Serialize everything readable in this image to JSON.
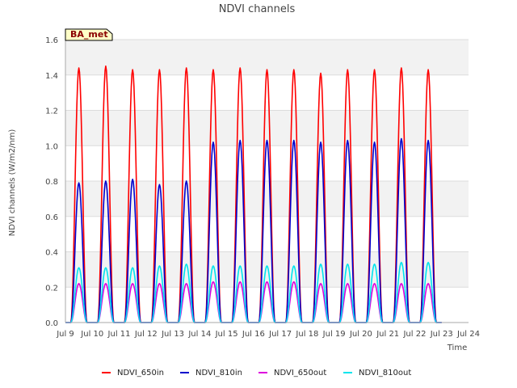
{
  "chart_data": {
    "type": "line",
    "title": "NDVI channels",
    "xlabel": "Time",
    "ylabel": "NDVI channels (W/m2/nm)",
    "ylim": [
      0.0,
      1.6
    ],
    "xlim": [
      9,
      24
    ],
    "x_ticks": [
      9,
      10,
      11,
      12,
      13,
      14,
      15,
      16,
      17,
      18,
      19,
      20,
      21,
      22,
      23,
      24
    ],
    "x_tick_labels": [
      "Jul 9",
      "Jul 10",
      "Jul 11",
      "Jul 12",
      "Jul 13",
      "Jul 14",
      "Jul 15",
      "Jul 16",
      "Jul 17",
      "Jul 18",
      "Jul 19",
      "Jul 20",
      "Jul 21",
      "Jul 22",
      "Jul 23",
      "Jul 24"
    ],
    "y_ticks": [
      0.0,
      0.2,
      0.4,
      0.6,
      0.8,
      1.0,
      1.2,
      1.4,
      1.6
    ],
    "y_tick_labels": [
      "0.0",
      "0.2",
      "0.4",
      "0.6",
      "0.8",
      "1.0",
      "1.2",
      "1.4",
      "1.6"
    ],
    "annotation": "BA_met",
    "day_starts": [
      9,
      10,
      11,
      12,
      13,
      14,
      15,
      16,
      17,
      18,
      19,
      20,
      21,
      22
    ],
    "daylight_start_offset": 0.2,
    "daylight_end_offset": 0.8,
    "series": [
      {
        "name": "NDVI_650in",
        "color": "#ff0000",
        "peaks": [
          1.44,
          1.45,
          1.43,
          1.43,
          1.44,
          1.43,
          1.44,
          1.43,
          1.43,
          1.41,
          1.43,
          1.43,
          1.44,
          1.43
        ]
      },
      {
        "name": "NDVI_810in",
        "color": "#0000cc",
        "peaks": [
          0.79,
          0.8,
          0.81,
          0.78,
          0.8,
          1.02,
          1.03,
          1.03,
          1.03,
          1.02,
          1.03,
          1.02,
          1.04,
          1.03
        ]
      },
      {
        "name": "NDVI_650out",
        "color": "#dd00dd",
        "peaks": [
          0.22,
          0.22,
          0.22,
          0.22,
          0.22,
          0.23,
          0.23,
          0.23,
          0.23,
          0.22,
          0.22,
          0.22,
          0.22,
          0.22
        ]
      },
      {
        "name": "NDVI_810out",
        "color": "#00e5ee",
        "peaks": [
          0.31,
          0.31,
          0.31,
          0.32,
          0.33,
          0.32,
          0.32,
          0.32,
          0.32,
          0.33,
          0.33,
          0.33,
          0.34,
          0.34
        ]
      }
    ]
  }
}
